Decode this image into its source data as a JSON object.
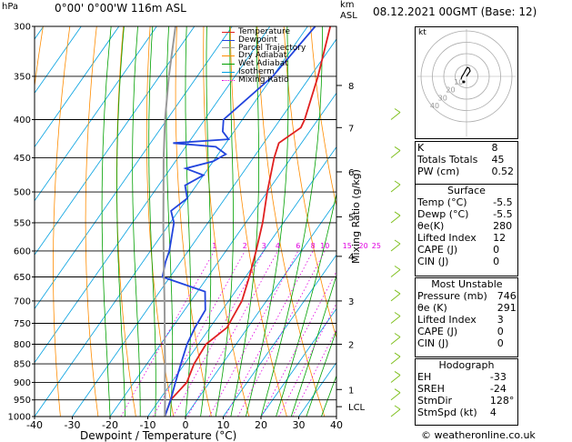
{
  "header": {
    "hpa": "hPa",
    "location": "0°00'  0°00'W  116m  ASL",
    "km": "km",
    "asl": "ASL",
    "datetime": "08.12.2021  00GMT  (Base: 12)"
  },
  "chart_data": {
    "type": "line",
    "title": "0°00'  0°00'W  116m  ASL",
    "xlabel": "Dewpoint / Temperature (°C)",
    "ylabel": "hPa",
    "secondary_ylabel": "Mixing Ratio (g/kg)",
    "xlim": [
      -40,
      40
    ],
    "ylim": [
      1000,
      300
    ],
    "x_ticks": [
      "-40",
      "-30",
      "-20",
      "-10",
      "0",
      "10",
      "20",
      "30",
      "40"
    ],
    "pressure_ticks": [
      "300",
      "350",
      "400",
      "450",
      "500",
      "550",
      "600",
      "650",
      "700",
      "750",
      "800",
      "850",
      "900",
      "950",
      "1000"
    ],
    "km_ticks": [
      {
        "p": 970,
        "label": "LCL"
      },
      {
        "p": 920,
        "label": "1"
      },
      {
        "p": 800,
        "label": "2"
      },
      {
        "p": 700,
        "label": "3"
      },
      {
        "p": 610,
        "label": "4"
      },
      {
        "p": 540,
        "label": "5"
      },
      {
        "p": 470,
        "label": "6"
      },
      {
        "p": 410,
        "label": "7"
      },
      {
        "p": 360,
        "label": "8"
      }
    ],
    "mixing_ratio_labels": [
      "1",
      "2",
      "3",
      "4",
      "6",
      "8",
      "10",
      "15",
      "20",
      "25"
    ],
    "series": [
      {
        "name": "Temperature",
        "color": "#e02020",
        "points": [
          [
            1000,
            -5.5
          ],
          [
            950,
            -7
          ],
          [
            900,
            -6
          ],
          [
            850,
            -7.5
          ],
          [
            800,
            -8
          ],
          [
            760,
            -5.5
          ],
          [
            700,
            -6.5
          ],
          [
            650,
            -9
          ],
          [
            600,
            -12
          ],
          [
            550,
            -15.5
          ],
          [
            500,
            -20
          ],
          [
            450,
            -24.5
          ],
          [
            430,
            -26
          ],
          [
            410,
            -23
          ],
          [
            400,
            -23.5
          ],
          [
            350,
            -28
          ],
          [
            300,
            -34
          ]
        ]
      },
      {
        "name": "Dewpoint",
        "color": "#2244dd",
        "points": [
          [
            1000,
            -5.5
          ],
          [
            950,
            -7
          ],
          [
            900,
            -9
          ],
          [
            850,
            -11
          ],
          [
            800,
            -13
          ],
          [
            760,
            -14
          ],
          [
            720,
            -14.5
          ],
          [
            680,
            -18
          ],
          [
            650,
            -32
          ],
          [
            620,
            -34
          ],
          [
            600,
            -35
          ],
          [
            550,
            -39
          ],
          [
            530,
            -42
          ],
          [
            510,
            -40
          ],
          [
            490,
            -43
          ],
          [
            475,
            -40
          ],
          [
            465,
            -46
          ],
          [
            455,
            -40
          ],
          [
            445,
            -38
          ],
          [
            435,
            -42
          ],
          [
            430,
            -54
          ],
          [
            425,
            -40
          ],
          [
            415,
            -43
          ],
          [
            400,
            -45
          ],
          [
            350,
            -40
          ],
          [
            300,
            -38
          ]
        ]
      },
      {
        "name": "Parcel Trajectory",
        "color": "#999999",
        "points": [
          [
            1000,
            -5.5
          ],
          [
            950,
            -8.5
          ],
          [
            900,
            -11.8
          ],
          [
            850,
            -15.2
          ],
          [
            800,
            -18.9
          ],
          [
            750,
            -22.8
          ],
          [
            700,
            -27
          ],
          [
            650,
            -31.6
          ],
          [
            600,
            -36.5
          ],
          [
            550,
            -41.8
          ],
          [
            500,
            -47.5
          ],
          [
            450,
            -53.8
          ],
          [
            400,
            -60.5
          ],
          [
            350,
            -67.5
          ],
          [
            300,
            -75
          ]
        ]
      }
    ]
  },
  "legend": [
    {
      "label": "Temperature",
      "color": "#e02020",
      "style": "solid"
    },
    {
      "label": "Dewpoint",
      "color": "#2244dd",
      "style": "solid"
    },
    {
      "label": "Parcel Trajectory",
      "color": "#999999",
      "style": "solid"
    },
    {
      "label": "Dry Adiabat",
      "color": "#ff8c00",
      "style": "solid"
    },
    {
      "label": "Wet Adiabat",
      "color": "#00a000",
      "style": "solid"
    },
    {
      "label": "Isotherm",
      "color": "#00a0e0",
      "style": "solid"
    },
    {
      "label": "Mixing Ratio",
      "color": "#e000e0",
      "style": "dotted"
    }
  ],
  "hodograph": {
    "label": "kt",
    "rings": [
      "10",
      "20",
      "30",
      "40"
    ]
  },
  "indices_top": [
    {
      "label": "K",
      "value": "8"
    },
    {
      "label": "Totals Totals",
      "value": "45"
    },
    {
      "label": "PW (cm)",
      "value": "0.52"
    }
  ],
  "surface": {
    "title": "Surface",
    "rows": [
      {
        "label": "Temp (°C)",
        "value": "-5.5"
      },
      {
        "label": "Dewp (°C)",
        "value": "-5.5"
      },
      {
        "label": "θe(K)",
        "value": "280"
      },
      {
        "label": "Lifted Index",
        "value": "12"
      },
      {
        "label": "CAPE (J)",
        "value": "0"
      },
      {
        "label": "CIN (J)",
        "value": "0"
      }
    ]
  },
  "most_unstable": {
    "title": "Most Unstable",
    "rows": [
      {
        "label": "Pressure (mb)",
        "value": "746"
      },
      {
        "label": "θe (K)",
        "value": "291"
      },
      {
        "label": "Lifted Index",
        "value": "3"
      },
      {
        "label": "CAPE (J)",
        "value": "0"
      },
      {
        "label": "CIN (J)",
        "value": "0"
      }
    ]
  },
  "hodograph_table": {
    "title": "Hodograph",
    "rows": [
      {
        "label": "EH",
        "value": "-33"
      },
      {
        "label": "SREH",
        "value": "-24"
      },
      {
        "label": "StmDir",
        "value": "128°"
      },
      {
        "label": "StmSpd (kt)",
        "value": "4"
      }
    ]
  },
  "copyright": "© weatheronline.co.uk"
}
